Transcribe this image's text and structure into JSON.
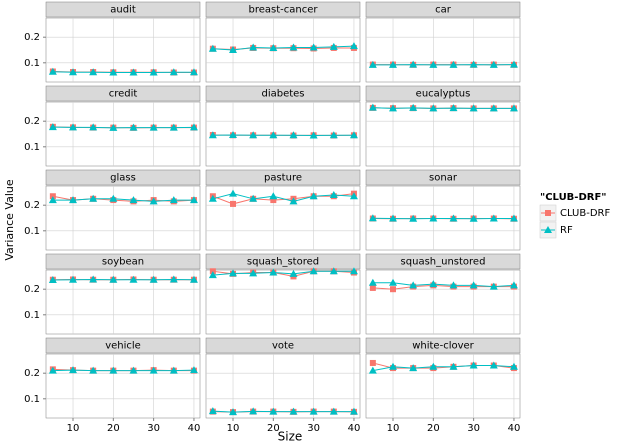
{
  "chart_data": {
    "type": "line",
    "x_label": "Size",
    "y_label": "Variance Value",
    "legend_title": "\"CLUB-DRF\"",
    "series": [
      {
        "name": "CLUB-DRF",
        "color": "#f8766d",
        "marker": "square"
      },
      {
        "name": "RF",
        "color": "#00bfc4",
        "marker": "triangle"
      }
    ],
    "x": [
      5,
      10,
      15,
      20,
      25,
      30,
      35,
      40
    ],
    "xlim": [
      3.3,
      41.5
    ],
    "xticks": [
      10,
      20,
      30,
      40
    ],
    "ylim": [
      0.025,
      0.275
    ],
    "yticks": [
      0.1,
      0.2
    ],
    "grid": true,
    "panels": [
      {
        "title": "audit",
        "values": [
          [
            0.066,
            0.064,
            0.064,
            0.063,
            0.063,
            0.063,
            0.062,
            0.062
          ],
          [
            0.065,
            0.063,
            0.063,
            0.062,
            0.062,
            0.062,
            0.063,
            0.063
          ]
        ]
      },
      {
        "title": "breast-cancer",
        "values": [
          [
            0.155,
            0.152,
            0.158,
            0.157,
            0.157,
            0.156,
            0.158,
            0.158
          ],
          [
            0.155,
            0.15,
            0.16,
            0.158,
            0.16,
            0.16,
            0.162,
            0.165
          ]
        ]
      },
      {
        "title": "car",
        "values": [
          [
            0.093,
            0.093,
            0.092,
            0.093,
            0.093,
            0.092,
            0.093,
            0.092
          ],
          [
            0.092,
            0.092,
            0.093,
            0.092,
            0.092,
            0.093,
            0.092,
            0.093
          ]
        ]
      },
      {
        "title": "credit",
        "values": [
          [
            0.178,
            0.176,
            0.175,
            0.175,
            0.174,
            0.175,
            0.175,
            0.175
          ],
          [
            0.177,
            0.176,
            0.176,
            0.174,
            0.175,
            0.175,
            0.175,
            0.176
          ]
        ]
      },
      {
        "title": "diabetes",
        "values": [
          [
            0.146,
            0.145,
            0.145,
            0.145,
            0.144,
            0.145,
            0.144,
            0.145
          ],
          [
            0.145,
            0.146,
            0.145,
            0.145,
            0.145,
            0.144,
            0.145,
            0.145
          ]
        ]
      },
      {
        "title": "eucalyptus",
        "values": [
          [
            0.252,
            0.251,
            0.251,
            0.25,
            0.251,
            0.25,
            0.25,
            0.25
          ],
          [
            0.253,
            0.25,
            0.252,
            0.25,
            0.251,
            0.25,
            0.25,
            0.25
          ]
        ]
      },
      {
        "title": "glass",
        "values": [
          [
            0.235,
            0.22,
            0.225,
            0.22,
            0.215,
            0.22,
            0.215,
            0.22
          ],
          [
            0.22,
            0.22,
            0.225,
            0.225,
            0.22,
            0.215,
            0.22,
            0.22
          ]
        ]
      },
      {
        "title": "pasture",
        "values": [
          [
            0.235,
            0.205,
            0.225,
            0.22,
            0.225,
            0.235,
            0.235,
            0.245
          ],
          [
            0.225,
            0.245,
            0.225,
            0.235,
            0.215,
            0.235,
            0.24,
            0.235
          ]
        ]
      },
      {
        "title": "sonar",
        "values": [
          [
            0.148,
            0.147,
            0.148,
            0.148,
            0.147,
            0.148,
            0.148,
            0.147
          ],
          [
            0.149,
            0.148,
            0.147,
            0.148,
            0.148,
            0.147,
            0.148,
            0.148
          ]
        ]
      },
      {
        "title": "soybean",
        "values": [
          [
            0.237,
            0.238,
            0.237,
            0.237,
            0.238,
            0.237,
            0.237,
            0.237
          ],
          [
            0.236,
            0.237,
            0.238,
            0.237,
            0.237,
            0.237,
            0.238,
            0.237
          ]
        ]
      },
      {
        "title": "squash_stored",
        "values": [
          [
            0.27,
            0.26,
            0.265,
            0.265,
            0.25,
            0.27,
            0.27,
            0.265
          ],
          [
            0.255,
            0.262,
            0.262,
            0.265,
            0.26,
            0.27,
            0.27,
            0.27
          ]
        ]
      },
      {
        "title": "squash_unstored",
        "values": [
          [
            0.205,
            0.2,
            0.21,
            0.215,
            0.21,
            0.21,
            0.21,
            0.21
          ],
          [
            0.225,
            0.225,
            0.215,
            0.22,
            0.215,
            0.215,
            0.21,
            0.215
          ]
        ]
      },
      {
        "title": "vehicle",
        "values": [
          [
            0.215,
            0.212,
            0.21,
            0.21,
            0.21,
            0.212,
            0.21,
            0.21
          ],
          [
            0.21,
            0.212,
            0.21,
            0.21,
            0.21,
            0.21,
            0.21,
            0.212
          ]
        ]
      },
      {
        "title": "vote",
        "values": [
          [
            0.05,
            0.048,
            0.05,
            0.05,
            0.049,
            0.05,
            0.05,
            0.049
          ],
          [
            0.052,
            0.048,
            0.051,
            0.05,
            0.05,
            0.05,
            0.05,
            0.05
          ]
        ]
      },
      {
        "title": "white-clover",
        "values": [
          [
            0.24,
            0.22,
            0.22,
            0.22,
            0.225,
            0.23,
            0.23,
            0.22
          ],
          [
            0.21,
            0.225,
            0.22,
            0.225,
            0.225,
            0.23,
            0.23,
            0.225
          ]
        ]
      }
    ]
  }
}
